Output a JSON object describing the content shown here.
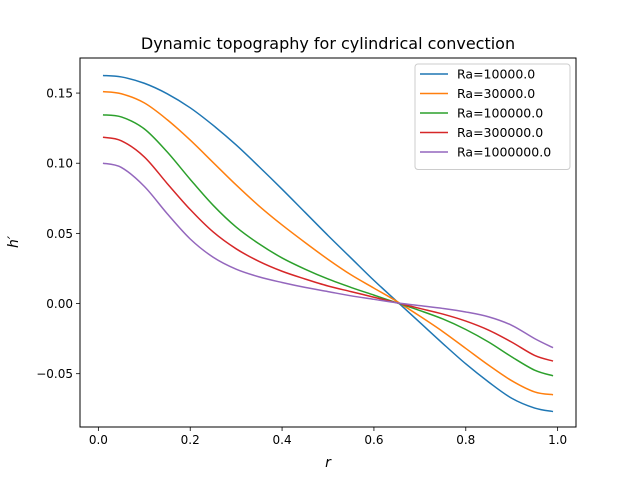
{
  "chart_data": {
    "type": "line",
    "title": "Dynamic topography for cylindrical convection",
    "xlabel": "r",
    "ylabel": "h′",
    "xlim": [
      -0.04,
      1.04
    ],
    "ylim": [
      -0.088,
      0.175
    ],
    "xticks": [
      0.0,
      0.2,
      0.4,
      0.6,
      0.8,
      1.0
    ],
    "xtick_labels": [
      "0.0",
      "0.2",
      "0.4",
      "0.6",
      "0.8",
      "1.0"
    ],
    "yticks": [
      -0.05,
      0.0,
      0.05,
      0.1,
      0.15
    ],
    "ytick_labels": [
      "−0.05",
      "0.00",
      "0.05",
      "0.10",
      "0.15"
    ],
    "grid": false,
    "legend_position": "top-right",
    "x": [
      0.01,
      0.05,
      0.1,
      0.15,
      0.2,
      0.25,
      0.3,
      0.35,
      0.4,
      0.45,
      0.5,
      0.55,
      0.6,
      0.65,
      0.7,
      0.75,
      0.8,
      0.85,
      0.9,
      0.95,
      0.99
    ],
    "series": [
      {
        "name": "Ra=10000.0",
        "color": "#1f77b4",
        "values": [
          0.1625,
          0.1615,
          0.157,
          0.1495,
          0.1395,
          0.127,
          0.113,
          0.0975,
          0.0815,
          0.065,
          0.0485,
          0.0325,
          0.0165,
          0.0015,
          -0.0135,
          -0.0285,
          -0.043,
          -0.056,
          -0.0675,
          -0.0745,
          -0.077
        ]
      },
      {
        "name": "Ra=30000.0",
        "color": "#ff7f0e",
        "values": [
          0.151,
          0.1495,
          0.143,
          0.131,
          0.1165,
          0.1005,
          0.0845,
          0.0695,
          0.056,
          0.0435,
          0.0315,
          0.0205,
          0.011,
          0.0015,
          -0.009,
          -0.02,
          -0.032,
          -0.044,
          -0.055,
          -0.063,
          -0.065
        ]
      },
      {
        "name": "Ra=100000.0",
        "color": "#2ca02c",
        "values": [
          0.1345,
          0.133,
          0.1245,
          0.108,
          0.0885,
          0.07,
          0.0545,
          0.0425,
          0.0325,
          0.0245,
          0.0175,
          0.0115,
          0.006,
          0.0005,
          -0.005,
          -0.011,
          -0.0185,
          -0.0275,
          -0.038,
          -0.0475,
          -0.0515
        ]
      },
      {
        "name": "Ra=300000.0",
        "color": "#d62728",
        "values": [
          0.1185,
          0.116,
          0.1045,
          0.0855,
          0.067,
          0.051,
          0.039,
          0.03,
          0.023,
          0.0175,
          0.0125,
          0.0085,
          0.0045,
          0.0005,
          -0.0035,
          -0.0075,
          -0.0125,
          -0.019,
          -0.0275,
          -0.037,
          -0.041
        ]
      },
      {
        "name": "Ra=1000000.0",
        "color": "#9467bd",
        "values": [
          0.1,
          0.097,
          0.0835,
          0.064,
          0.046,
          0.033,
          0.0245,
          0.019,
          0.015,
          0.0115,
          0.0085,
          0.0055,
          0.003,
          0.0005,
          -0.0015,
          -0.0035,
          -0.006,
          -0.0095,
          -0.0155,
          -0.025,
          -0.0315
        ]
      }
    ]
  }
}
